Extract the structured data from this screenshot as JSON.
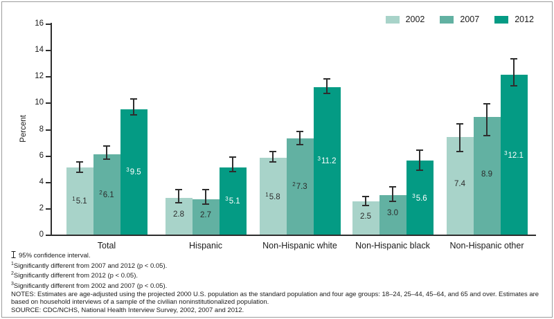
{
  "figure": {
    "background": "#ffffff",
    "border_color": "#9b9b9b"
  },
  "chart_data": {
    "type": "bar",
    "title": "",
    "xlabel": "",
    "ylabel": "Percent",
    "ylim": [
      0,
      16
    ],
    "ytick_step": 2,
    "ytick_labels": [
      "0",
      "2",
      "4",
      "6",
      "8",
      "10",
      "12",
      "14",
      "16"
    ],
    "grid": false,
    "legend_position": "top-right",
    "error_bars": "95% confidence interval",
    "categories": [
      "Total",
      "Hispanic",
      "Non-Hispanic white",
      "Non-Hispanic black",
      "Non-Hispanic other"
    ],
    "series": [
      {
        "name": "2002",
        "color": "#a8d3c9",
        "label_color": "#2b2b2b",
        "values": [
          5.1,
          2.8,
          5.8,
          2.5,
          7.4
        ],
        "labels": [
          "5.1",
          "2.8",
          "5.8",
          "2.5",
          "7.4"
        ],
        "sups": [
          "1",
          "",
          "1",
          "",
          ""
        ],
        "ci_low": [
          4.7,
          2.4,
          5.5,
          2.2,
          6.3
        ],
        "ci_high": [
          5.5,
          3.4,
          6.3,
          2.9,
          8.4
        ]
      },
      {
        "name": "2007",
        "color": "#62b1a2",
        "label_color": "#2b2b2b",
        "values": [
          6.1,
          2.7,
          7.3,
          3.0,
          8.9
        ],
        "labels": [
          "6.1",
          "2.7",
          "7.3",
          "3.0",
          "8.9"
        ],
        "sups": [
          "2",
          "",
          "2",
          "",
          ""
        ],
        "ci_low": [
          5.7,
          2.3,
          6.8,
          2.5,
          7.5
        ],
        "ci_high": [
          6.7,
          3.4,
          7.8,
          3.6,
          9.9
        ]
      },
      {
        "name": "2012",
        "color": "#049b84",
        "label_color": "#ffffff",
        "values": [
          9.5,
          5.1,
          11.2,
          5.6,
          12.1
        ],
        "labels": [
          "9.5",
          "5.1",
          "11.2",
          "5.6",
          "12.1"
        ],
        "sups": [
          "3",
          "3",
          "3",
          "3",
          "3"
        ],
        "ci_low": [
          9.1,
          4.8,
          10.7,
          4.9,
          11.3
        ],
        "ci_high": [
          10.3,
          5.9,
          11.8,
          6.4,
          13.3
        ]
      }
    ]
  },
  "footnotes": {
    "ci_line": "95% confidence interval.",
    "sig_lines": [
      {
        "sup": "1",
        "text": "Significantly different from 2007 and 2012 (p < 0.05)."
      },
      {
        "sup": "2",
        "text": "Significantly different from 2012 (p < 0.05)."
      },
      {
        "sup": "3",
        "text": "Significantly different from 2002 and 2007 (p < 0.05)."
      }
    ],
    "notes": "NOTES: Estimates are age-adjusted using the projected 2000 U.S. population as the standard population and four age groups: 18–24, 25–44, 45–64, and 65 and over. Estimates are based on household interviews of a sample of the civilian noninstitutionalized population.",
    "source": "SOURCE: CDC/NCHS, National Health Interview Survey, 2002, 2007 and 2012."
  }
}
